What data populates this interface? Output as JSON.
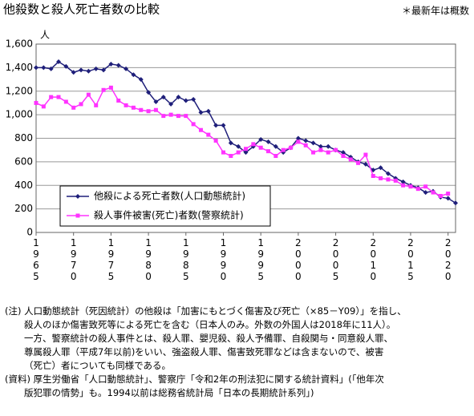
{
  "chart_data": {
    "type": "line",
    "title": "他殺数と殺人死亡者数の比較",
    "note": "＊最新年は概数",
    "y_label": "人",
    "x": [
      1965,
      1966,
      1967,
      1968,
      1969,
      1970,
      1971,
      1972,
      1973,
      1974,
      1975,
      1976,
      1977,
      1978,
      1979,
      1980,
      1981,
      1982,
      1983,
      1984,
      1985,
      1986,
      1987,
      1988,
      1989,
      1990,
      1991,
      1992,
      1993,
      1994,
      1995,
      1996,
      1997,
      1998,
      1999,
      2000,
      2001,
      2002,
      2003,
      2004,
      2005,
      2006,
      2007,
      2008,
      2009,
      2010,
      2011,
      2012,
      2013,
      2014,
      2015,
      2016,
      2017,
      2018,
      2019,
      2020,
      2021
    ],
    "series": [
      {
        "name": "他殺による死亡者数(人口動態統計)",
        "color": "#1f1f7a",
        "marker": "diamond",
        "values": [
          1400,
          1400,
          1390,
          1450,
          1410,
          1360,
          1380,
          1370,
          1390,
          1380,
          1430,
          1420,
          1390,
          1340,
          1300,
          1190,
          1110,
          1150,
          1090,
          1150,
          1120,
          1130,
          1020,
          1030,
          910,
          910,
          760,
          730,
          680,
          730,
          790,
          770,
          730,
          680,
          720,
          800,
          780,
          760,
          730,
          730,
          700,
          680,
          640,
          600,
          580,
          530,
          550,
          500,
          460,
          430,
          400,
          380,
          340,
          350,
          300,
          290,
          250
        ]
      },
      {
        "name": "殺人事件被害(死亡)者数(警察統計)",
        "color": "#ff33ff",
        "marker": "square",
        "values": [
          1100,
          1070,
          1150,
          1150,
          1110,
          1060,
          1090,
          1170,
          1080,
          1210,
          1230,
          1120,
          1080,
          1060,
          1040,
          1030,
          1040,
          990,
          1000,
          990,
          990,
          920,
          870,
          830,
          780,
          680,
          650,
          680,
          710,
          750,
          720,
          690,
          650,
          700,
          720,
          770,
          740,
          680,
          700,
          680,
          700,
          650,
          620,
          590,
          660,
          480,
          460,
          450,
          440,
          400,
          390,
          370,
          390,
          340,
          310,
          330,
          null
        ]
      }
    ],
    "xlim": [
      1965,
      2021
    ],
    "xticks": [
      1965,
      1970,
      1975,
      1980,
      1985,
      1990,
      1995,
      2000,
      2005,
      2010,
      2015,
      2020
    ],
    "ylim": [
      0,
      1600
    ],
    "yticks": [
      0,
      200,
      400,
      600,
      800,
      {
        "value": 1000,
        "label": "1,000"
      },
      {
        "value": 1200,
        "label": "1,200"
      },
      {
        "value": 1400,
        "label": "1,400"
      },
      {
        "value": 1600,
        "label": "1,600"
      }
    ],
    "grid": true,
    "legend": "lower left"
  },
  "notes": [
    "(注) 人口動態統計（死因統計）の他殺は「加害にもとづく傷害及び死亡（×85－Y09）」を指し、",
    "殺人のほか傷害致死等による死亡を含む（日本人のみ。外数の外国人は2018年に11人）。",
    "一方、警察統計の殺人事件とは、殺人罪、嬰児殺、殺人予備罪、自殺関与・同意殺人罪、",
    "尊属殺人罪（平成7年以前)をいい、強盗殺人罪、傷害致死罪などは含まないので、被害",
    "（死亡）者についても同様である。",
    "(資料) 厚生労働省「人口動態統計」、警察庁「令和2年の刑法犯に関する統計資料」(「他年次",
    "版犯罪の情勢」も。1994以前は総務省統計局「日本の長期統計系列」)"
  ]
}
